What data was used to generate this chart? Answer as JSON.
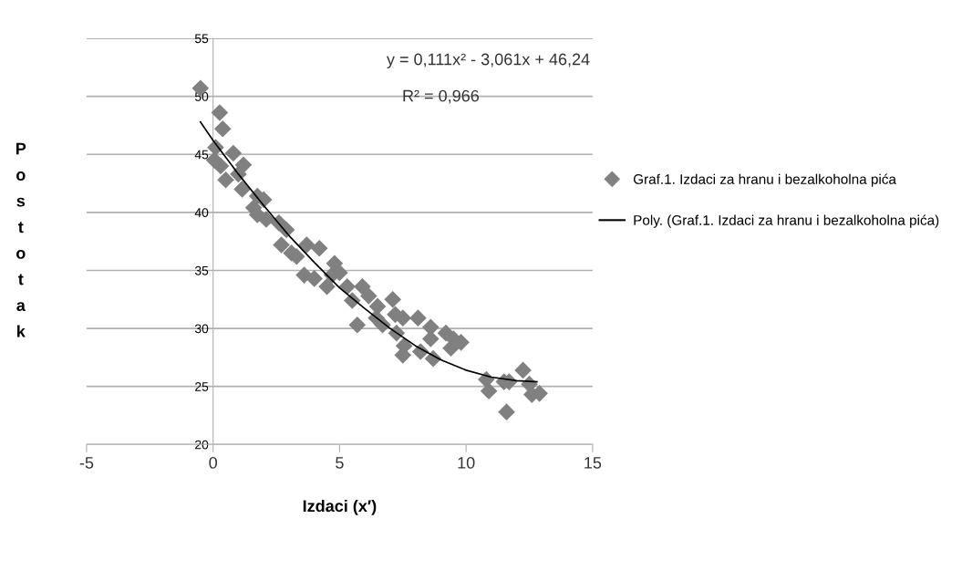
{
  "chart_data": {
    "type": "scatter",
    "xlabel": "Izdaci (x′)",
    "ylabel": "Postotak",
    "xlim": [
      -5,
      15
    ],
    "xticks": [
      -5,
      0,
      5,
      10,
      15
    ],
    "ylim": [
      20,
      55
    ],
    "yticks": [
      20,
      25,
      30,
      35,
      40,
      45,
      50,
      55
    ],
    "grid": "y",
    "legend": "right",
    "marker": "diamond",
    "annotations": [
      "y = 0,111x² - 3,061x + 46,24",
      "R² = 0,966"
    ],
    "series": [
      {
        "name": "Graf.1. Izdaci za hranu i bezalkoholna pića",
        "color": "#808080",
        "x": [
          -0.5,
          0.26,
          0.38,
          0.1,
          0.05,
          0.3,
          0.5,
          0.8,
          1.2,
          1.15,
          1.0,
          1.75,
          2.0,
          1.6,
          1.75,
          2.1,
          2.6,
          2.9,
          2.7,
          3.1,
          3.3,
          3.7,
          4.2,
          3.6,
          4.0,
          4.5,
          4.8,
          5.0,
          4.7,
          5.3,
          5.5,
          5.9,
          6.15,
          6.5,
          6.45,
          6.7,
          5.7,
          7.1,
          7.2,
          7.5,
          7.25,
          7.55,
          7.5,
          8.1,
          8.2,
          8.6,
          8.6,
          8.7,
          9.2,
          9.5,
          9.4,
          9.8,
          10.8,
          10.9,
          11.5,
          11.7,
          11.6,
          12.25,
          12.5,
          12.6,
          12.9
        ],
        "values": [
          50.7,
          48.6,
          47.2,
          45.6,
          44.5,
          44.0,
          42.8,
          45.1,
          44.1,
          42.0,
          43.3,
          41.4,
          41.1,
          40.4,
          39.8,
          39.4,
          39.1,
          38.5,
          37.2,
          36.5,
          36.2,
          37.2,
          36.9,
          34.6,
          34.3,
          33.6,
          35.6,
          34.8,
          34.6,
          33.6,
          32.4,
          33.6,
          32.8,
          31.9,
          30.9,
          30.3,
          30.3,
          32.5,
          31.2,
          30.9,
          29.6,
          28.5,
          27.7,
          30.9,
          28.0,
          30.1,
          29.1,
          27.4,
          29.6,
          29.1,
          28.3,
          28.8,
          25.6,
          24.6,
          25.4,
          25.4,
          22.8,
          26.4,
          25.2,
          24.3,
          24.4
        ]
      },
      {
        "name": "Poly. (Graf.1. Izdaci za hranu i bezalkoholna pića)",
        "type": "line",
        "color": "#000000",
        "marker": "none",
        "line_style": "solid",
        "x": [
          -0.5,
          0,
          1,
          2,
          3,
          4,
          5,
          6,
          7,
          8,
          9,
          10,
          11,
          12,
          12.8
        ],
        "values": [
          47.8,
          46.2,
          43.3,
          40.6,
          38.0,
          35.7,
          33.5,
          31.7,
          30.0,
          28.5,
          27.3,
          26.4,
          25.8,
          25.5,
          25.4
        ]
      }
    ]
  }
}
